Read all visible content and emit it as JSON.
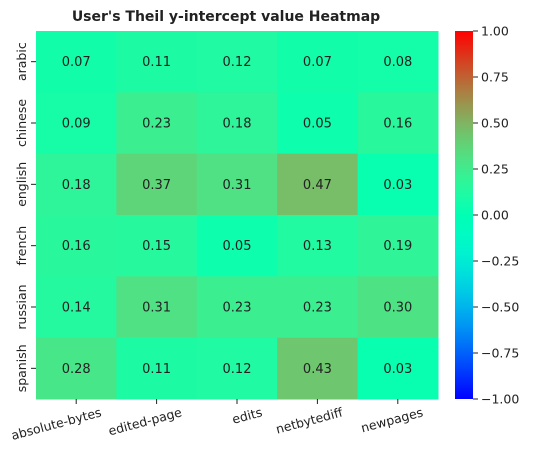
{
  "chart_data": {
    "type": "heatmap",
    "title": "User's Theil y-intercept value Heatmap",
    "xlabel": "",
    "ylabel": "",
    "x_categories": [
      "absolute-bytes",
      "edited-page",
      "edits",
      "netbytediff",
      "newpages"
    ],
    "y_categories": [
      "arabic",
      "chinese",
      "english",
      "french",
      "russian",
      "spanish"
    ],
    "values": [
      [
        0.07,
        0.11,
        0.12,
        0.07,
        0.08
      ],
      [
        0.09,
        0.23,
        0.18,
        0.05,
        0.16
      ],
      [
        0.18,
        0.37,
        0.31,
        0.47,
        0.03
      ],
      [
        0.16,
        0.15,
        0.05,
        0.13,
        0.19
      ],
      [
        0.14,
        0.31,
        0.23,
        0.23,
        0.3
      ],
      [
        0.28,
        0.11,
        0.12,
        0.43,
        0.03
      ]
    ],
    "cell_labels": [
      [
        "0.07",
        "0.11",
        "0.12",
        "0.07",
        "0.08"
      ],
      [
        "0.09",
        "0.23",
        "0.18",
        "0.05",
        "0.16"
      ],
      [
        "0.18",
        "0.37",
        "0.31",
        "0.47",
        "0.03"
      ],
      [
        "0.16",
        "0.15",
        "0.05",
        "0.13",
        "0.19"
      ],
      [
        "0.14",
        "0.31",
        "0.23",
        "0.23",
        "0.30"
      ],
      [
        "0.28",
        "0.11",
        "0.12",
        "0.43",
        "0.03"
      ]
    ],
    "colormap": "rainbow",
    "vmin": -1.0,
    "vmax": 1.0,
    "colorbar_ticks": [
      1.0,
      0.75,
      0.5,
      0.25,
      0.0,
      -0.25,
      -0.5,
      -0.75,
      -1.0
    ],
    "colorbar_tick_labels": [
      "1.00",
      "0.75",
      "0.50",
      "0.25",
      "0.00",
      "−0.25",
      "−0.50",
      "−0.75",
      "−1.00"
    ]
  }
}
